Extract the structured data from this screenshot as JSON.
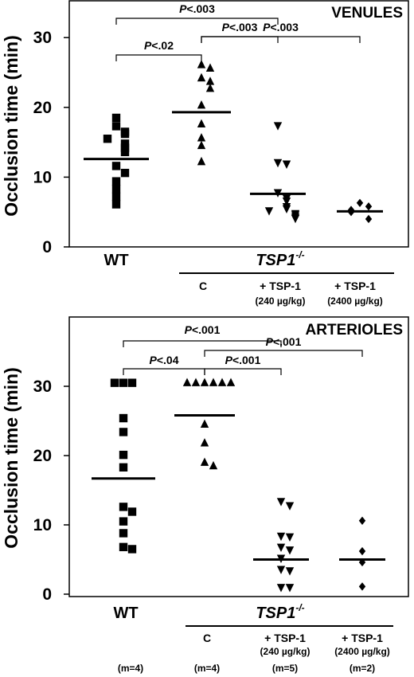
{
  "chart_data": [
    {
      "type": "scatter",
      "title": "VENULES",
      "ylabel": "Occlusion time (min)",
      "ylim": [
        0,
        35
      ],
      "yticks": [
        "0",
        "10",
        "20",
        "30"
      ],
      "group_label": "TSP1",
      "group_label_sup": "-/-",
      "categories": [
        {
          "label": "WT",
          "sublabel": "",
          "marker": "square",
          "mean": 12.6,
          "values": [
            18.5,
            17.3,
            16.5,
            16.2,
            15.5,
            14.8,
            14.2,
            13.6,
            11.6,
            10.6,
            9.4,
            8.3,
            7.2,
            6.1
          ]
        },
        {
          "label": "C",
          "sublabel": "",
          "marker": "triangle-up",
          "mean": 19.3,
          "values": [
            26.1,
            25.6,
            24.2,
            23.7,
            22.7,
            20.3,
            17.6,
            15.6,
            14.5,
            12.2
          ]
        },
        {
          "label": "+ TSP-1",
          "sublabel": "(240 µg/kg)",
          "marker": "triangle-down",
          "mean": 7.6,
          "values": [
            17.4,
            12.1,
            11.9,
            7.8,
            7.0,
            6.6,
            5.8,
            5.5,
            5.2,
            4.8,
            4.6,
            4.3,
            4.1
          ]
        },
        {
          "label": "+ TSP-1",
          "sublabel": "(2400 µg/kg)",
          "marker": "diamond",
          "mean": 5.1,
          "values": [
            6.3,
            5.8,
            5.3,
            5.0,
            4.0
          ]
        }
      ],
      "comparisons": [
        {
          "a": 0,
          "b": 2,
          "label": "P<.003"
        },
        {
          "a": 1,
          "b": 3,
          "label": "P<.003"
        },
        {
          "a": 0,
          "b": 1,
          "label": "P<.02"
        },
        {
          "a": 1,
          "b": 2,
          "label": "P<.003"
        }
      ]
    },
    {
      "type": "scatter",
      "title": "ARTERIOLES",
      "ylabel": "Occlusion time (min)",
      "ylim": [
        0,
        38
      ],
      "yticks": [
        "0",
        "10",
        "20",
        "30"
      ],
      "group_label": "TSP1",
      "group_label_sup": "-/-",
      "counts": [
        "(m=4)",
        "(m=4)",
        "(m=5)",
        "(m=2)"
      ],
      "categories": [
        {
          "label": "WT",
          "sublabel": "",
          "marker": "square",
          "mean": 16.7,
          "values": [
            30.5,
            30.5,
            30.5,
            25.4,
            23.4,
            20.1,
            18.3,
            12.6,
            11.9,
            10.5,
            8.8,
            6.8,
            6.5
          ]
        },
        {
          "label": "C",
          "sublabel": "",
          "marker": "triangle-up",
          "mean": 25.8,
          "values": [
            30.5,
            30.5,
            30.5,
            30.5,
            30.5,
            30.5,
            24.5,
            21.8,
            19.0,
            18.5
          ]
        },
        {
          "label": "+ TSP-1",
          "sublabel": "(240 µg/kg)",
          "marker": "triangle-down",
          "mean": 5.0,
          "values": [
            13.4,
            12.8,
            8.4,
            8.3,
            6.8,
            6.4,
            5.2,
            3.6,
            3.4,
            1.0,
            1.0
          ]
        },
        {
          "label": "+ TSP-1",
          "sublabel": "(2400 µg/kg)",
          "marker": "diamond",
          "mean": 5.0,
          "values": [
            10.6,
            6.2,
            4.6,
            1.1
          ]
        }
      ],
      "comparisons": [
        {
          "a": 0,
          "b": 2,
          "label": "P<.001"
        },
        {
          "a": 1,
          "b": 3,
          "label": "P<.001"
        },
        {
          "a": 0,
          "b": 1,
          "label": "P<.04"
        },
        {
          "a": 1,
          "b": 2,
          "label": "P<.001"
        }
      ]
    }
  ]
}
